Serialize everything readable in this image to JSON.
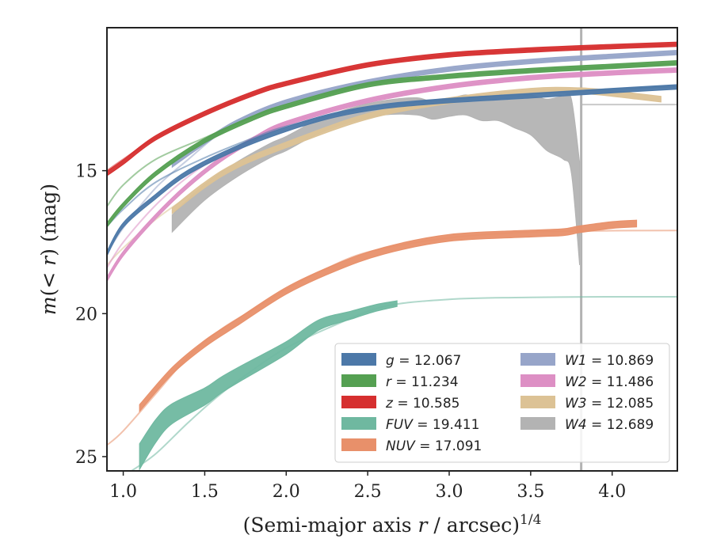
{
  "chart_data": {
    "type": "line",
    "xlabel": "(Semi-major axis r / arcsec)",
    "xlabel_superscript": "1/4",
    "ylabel": "m(< r) (mag)",
    "xlim": [
      0.9,
      4.4
    ],
    "ylim": [
      25.5,
      10.0
    ],
    "y_inverted": true,
    "grid": false,
    "legend_placement": "lower-right",
    "x_ticks": [
      "1.0",
      "1.5",
      "2.0",
      "2.5",
      "3.0",
      "3.5",
      "4.0"
    ],
    "y_ticks": [
      "15",
      "20",
      "25"
    ],
    "vline_x": 3.81,
    "legend": [
      {
        "var": "g",
        "value": "12.067",
        "color": "#4c78a8"
      },
      {
        "var": "r",
        "value": "11.234",
        "color": "#55a052"
      },
      {
        "var": "z",
        "value": "10.585",
        "color": "#d62f2f"
      },
      {
        "var": "FUV",
        "value": "19.411",
        "color": "#6fb8a0"
      },
      {
        "var": "NUV",
        "value": "17.091",
        "color": "#e8906a"
      },
      {
        "var": "W1",
        "value": "10.869",
        "color": "#97a5c9"
      },
      {
        "var": "W2",
        "value": "11.486",
        "color": "#dd8fc4"
      },
      {
        "var": "W3",
        "value": "12.085",
        "color": "#dcc295"
      },
      {
        "var": "W4",
        "value": "12.689",
        "color": "#b3b3b3"
      }
    ],
    "series": [
      {
        "id": "g",
        "color": "#4c78a8",
        "model": [
          [
            0.9,
            16.95
          ],
          [
            1.0,
            16.35
          ],
          [
            1.2,
            15.4
          ],
          [
            1.5,
            14.55
          ],
          [
            1.8,
            13.85
          ],
          [
            2.0,
            13.45
          ],
          [
            2.5,
            12.8
          ],
          [
            3.0,
            12.5
          ],
          [
            3.5,
            12.3
          ],
          [
            4.0,
            12.15
          ],
          [
            4.4,
            12.05
          ]
        ],
        "data": [
          [
            0.9,
            17.9
          ],
          [
            1.0,
            16.9
          ],
          [
            1.2,
            15.9
          ],
          [
            1.4,
            15.05
          ],
          [
            1.7,
            14.2
          ],
          [
            2.0,
            13.55
          ],
          [
            2.3,
            13.05
          ],
          [
            2.6,
            12.75
          ],
          [
            3.0,
            12.55
          ],
          [
            3.5,
            12.38
          ],
          [
            4.0,
            12.2
          ],
          [
            4.4,
            12.07
          ]
        ],
        "band": 0.08
      },
      {
        "id": "r",
        "color": "#55a052",
        "model": [
          [
            0.9,
            16.25
          ],
          [
            1.0,
            15.5
          ],
          [
            1.2,
            14.6
          ],
          [
            1.5,
            13.85
          ],
          [
            1.8,
            13.1
          ],
          [
            2.0,
            12.75
          ],
          [
            2.5,
            12.0
          ],
          [
            3.0,
            11.7
          ],
          [
            3.5,
            11.5
          ],
          [
            4.0,
            11.35
          ],
          [
            4.4,
            11.25
          ]
        ],
        "data": [
          [
            0.9,
            16.9
          ],
          [
            1.0,
            16.2
          ],
          [
            1.2,
            15.1
          ],
          [
            1.5,
            13.95
          ],
          [
            1.8,
            13.15
          ],
          [
            2.0,
            12.75
          ],
          [
            2.5,
            12.0
          ],
          [
            3.0,
            11.7
          ],
          [
            3.5,
            11.5
          ],
          [
            4.0,
            11.35
          ],
          [
            4.4,
            11.23
          ]
        ],
        "band": 0.08
      },
      {
        "id": "z",
        "color": "#d62f2f",
        "model": [
          [
            0.9,
            15.0
          ],
          [
            1.0,
            14.6
          ],
          [
            1.2,
            13.85
          ],
          [
            1.5,
            13.0
          ],
          [
            1.8,
            12.3
          ],
          [
            2.0,
            11.95
          ],
          [
            2.5,
            11.3
          ],
          [
            3.0,
            10.95
          ],
          [
            3.5,
            10.78
          ],
          [
            4.0,
            10.66
          ],
          [
            4.4,
            10.58
          ]
        ],
        "data": [
          [
            0.9,
            15.1
          ],
          [
            1.0,
            14.7
          ],
          [
            1.2,
            13.85
          ],
          [
            1.5,
            13.0
          ],
          [
            1.8,
            12.3
          ],
          [
            2.0,
            11.95
          ],
          [
            2.5,
            11.3
          ],
          [
            3.0,
            10.95
          ],
          [
            3.5,
            10.78
          ],
          [
            4.0,
            10.66
          ],
          [
            4.4,
            10.58
          ]
        ],
        "band": 0.08
      },
      {
        "id": "W1",
        "color": "#97a5c9",
        "model": [
          [
            0.9,
            17.9
          ],
          [
            1.0,
            17.0
          ],
          [
            1.2,
            15.6
          ],
          [
            1.4,
            14.6
          ],
          [
            1.6,
            13.65
          ],
          [
            1.8,
            13.0
          ],
          [
            2.0,
            12.6
          ],
          [
            2.5,
            11.9
          ],
          [
            3.0,
            11.45
          ],
          [
            3.5,
            11.18
          ],
          [
            4.0,
            11.0
          ],
          [
            4.4,
            10.88
          ]
        ],
        "data": [
          [
            1.3,
            14.8
          ],
          [
            1.5,
            14.0
          ],
          [
            1.7,
            13.3
          ],
          [
            2.0,
            12.6
          ],
          [
            2.5,
            11.9
          ],
          [
            3.0,
            11.45
          ],
          [
            3.5,
            11.18
          ],
          [
            4.0,
            11.0
          ],
          [
            4.4,
            10.87
          ]
        ],
        "band": 0.08
      },
      {
        "id": "W2",
        "color": "#dd8fc4",
        "model": [
          [
            0.9,
            18.4
          ],
          [
            1.0,
            17.5
          ],
          [
            1.2,
            16.2
          ],
          [
            1.4,
            15.2
          ],
          [
            1.6,
            14.45
          ],
          [
            1.8,
            13.9
          ],
          [
            2.0,
            13.35
          ],
          [
            2.5,
            12.55
          ],
          [
            3.0,
            12.05
          ],
          [
            3.5,
            11.75
          ],
          [
            4.0,
            11.58
          ],
          [
            4.4,
            11.48
          ]
        ],
        "data": [
          [
            0.9,
            18.8
          ],
          [
            1.0,
            17.9
          ],
          [
            1.2,
            16.6
          ],
          [
            1.4,
            15.5
          ],
          [
            1.6,
            14.6
          ],
          [
            1.8,
            13.9
          ],
          [
            2.0,
            13.35
          ],
          [
            2.5,
            12.55
          ],
          [
            3.0,
            12.05
          ],
          [
            3.5,
            11.75
          ],
          [
            4.0,
            11.58
          ],
          [
            4.4,
            11.48
          ]
        ],
        "band": 0.08
      },
      {
        "id": "W3",
        "color": "#dcc295",
        "model": [
          [
            0.9,
            18.3
          ],
          [
            1.0,
            17.7
          ],
          [
            1.2,
            16.7
          ],
          [
            1.4,
            15.9
          ],
          [
            1.6,
            15.2
          ],
          [
            1.8,
            14.6
          ],
          [
            2.0,
            14.05
          ],
          [
            2.5,
            13.1
          ],
          [
            3.0,
            12.55
          ],
          [
            3.5,
            12.2
          ],
          [
            4.0,
            12.15
          ],
          [
            4.35,
            12.05
          ]
        ],
        "data": [
          [
            1.3,
            16.4
          ],
          [
            1.5,
            15.5
          ],
          [
            1.7,
            14.8
          ],
          [
            2.0,
            14.1
          ],
          [
            2.5,
            13.1
          ],
          [
            3.0,
            12.55
          ],
          [
            3.5,
            12.22
          ],
          [
            3.8,
            12.2
          ],
          [
            4.0,
            12.3
          ],
          [
            4.15,
            12.4
          ],
          [
            4.3,
            12.5
          ]
        ],
        "band": 0.1
      },
      {
        "id": "W4",
        "color": "#b3b3b3",
        "data": [
          [
            1.3,
            16.85
          ],
          [
            1.5,
            15.75
          ],
          [
            1.7,
            14.95
          ],
          [
            1.9,
            14.3
          ],
          [
            2.0,
            14.05
          ],
          [
            2.2,
            13.45
          ],
          [
            2.4,
            13.05
          ],
          [
            2.6,
            12.8
          ],
          [
            2.8,
            12.75
          ],
          [
            2.9,
            12.9
          ],
          [
            3.0,
            12.8
          ],
          [
            3.1,
            12.7
          ],
          [
            3.2,
            12.85
          ],
          [
            3.3,
            12.8
          ],
          [
            3.4,
            12.95
          ],
          [
            3.5,
            13.05
          ],
          [
            3.6,
            13.4
          ],
          [
            3.7,
            13.5
          ],
          [
            3.75,
            13.8
          ],
          [
            3.8,
            16.5
          ]
        ],
        "band": [
          0.3,
          0.28,
          0.26,
          0.25,
          0.25,
          0.25,
          0.25,
          0.25,
          0.3,
          0.3,
          0.3,
          0.35,
          0.4,
          0.45,
          0.55,
          0.7,
          0.9,
          1.1,
          1.3,
          1.8
        ],
        "asymptote": 12.689
      },
      {
        "id": "NUV",
        "color": "#e8906a",
        "model": [
          [
            0.9,
            24.6
          ],
          [
            1.0,
            24.1
          ],
          [
            1.2,
            22.8
          ],
          [
            1.4,
            21.5
          ],
          [
            1.6,
            20.55
          ],
          [
            1.8,
            19.85
          ],
          [
            2.0,
            19.15
          ],
          [
            2.2,
            18.55
          ],
          [
            2.5,
            17.85
          ],
          [
            3.0,
            17.35
          ],
          [
            3.5,
            17.15
          ],
          [
            4.0,
            17.1
          ],
          [
            4.4,
            17.09
          ]
        ],
        "data": [
          [
            1.1,
            23.3
          ],
          [
            1.3,
            22.0
          ],
          [
            1.5,
            21.05
          ],
          [
            1.7,
            20.3
          ],
          [
            2.0,
            19.2
          ],
          [
            2.3,
            18.4
          ],
          [
            2.6,
            17.8
          ],
          [
            3.0,
            17.35
          ],
          [
            3.5,
            17.2
          ],
          [
            3.7,
            17.15
          ],
          [
            3.8,
            17.05
          ],
          [
            4.0,
            16.9
          ],
          [
            4.15,
            16.85
          ]
        ],
        "band": 0.12
      },
      {
        "id": "FUV",
        "color": "#6fb8a0",
        "model": [
          [
            1.05,
            25.5
          ],
          [
            1.2,
            24.9
          ],
          [
            1.4,
            23.8
          ],
          [
            1.6,
            22.8
          ],
          [
            1.8,
            21.95
          ],
          [
            2.0,
            21.2
          ],
          [
            2.3,
            20.4
          ],
          [
            2.6,
            19.75
          ],
          [
            3.0,
            19.5
          ],
          [
            3.5,
            19.43
          ],
          [
            4.0,
            19.41
          ],
          [
            4.4,
            19.41
          ]
        ],
        "data": [
          [
            1.1,
            25.0
          ],
          [
            1.2,
            24.1
          ],
          [
            1.3,
            23.5
          ],
          [
            1.5,
            22.9
          ],
          [
            1.6,
            22.5
          ],
          [
            1.75,
            22.0
          ],
          [
            2.0,
            21.2
          ],
          [
            2.2,
            20.4
          ],
          [
            2.4,
            20.05
          ],
          [
            2.55,
            19.8
          ],
          [
            2.68,
            19.65
          ]
        ],
        "band": [
          0.45,
          0.4,
          0.35,
          0.3,
          0.28,
          0.26,
          0.22,
          0.18,
          0.14,
          0.12,
          0.1
        ]
      }
    ]
  }
}
